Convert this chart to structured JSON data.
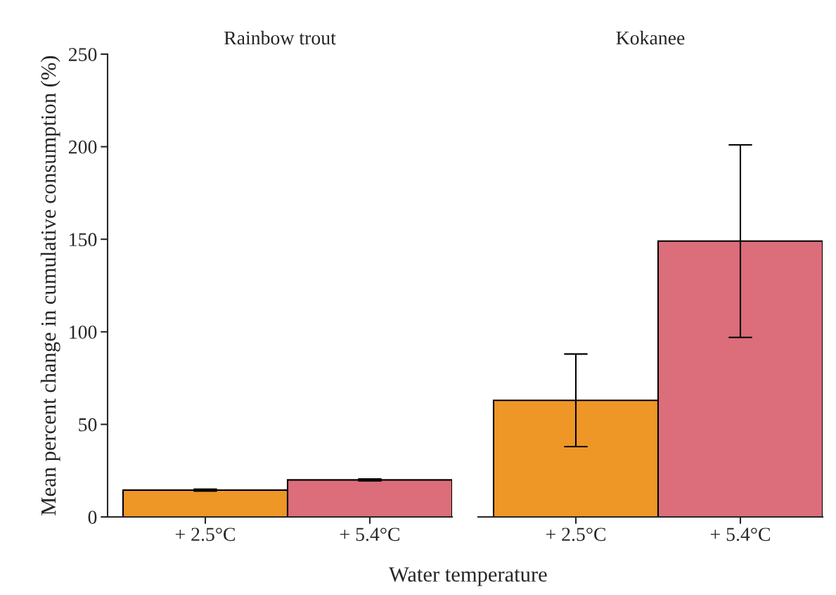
{
  "chart_data": [
    {
      "type": "bar",
      "title": "Rainbow trout",
      "categories": [
        "+ 2.5°C",
        "+ 5.4°C"
      ],
      "values": [
        14.5,
        20
      ],
      "errors": [
        0.5,
        0.5
      ],
      "colors": [
        "#ee9626",
        "#dc6d7a"
      ],
      "ylim": [
        0,
        250
      ],
      "yticks": [
        0,
        50,
        100,
        150,
        200,
        250
      ],
      "ylabel": "Mean percent change in cumulative consumption (%)",
      "xlabel": "Water temperature",
      "grid": false
    },
    {
      "type": "bar",
      "title": "Kokanee",
      "categories": [
        "+ 2.5°C",
        "+ 5.4°C"
      ],
      "values": [
        63,
        149
      ],
      "errors": [
        25,
        52
      ],
      "colors": [
        "#ee9626",
        "#dc6d7a"
      ],
      "ylim": [
        0,
        250
      ],
      "tick_labels": "x",
      "grid": false
    }
  ]
}
